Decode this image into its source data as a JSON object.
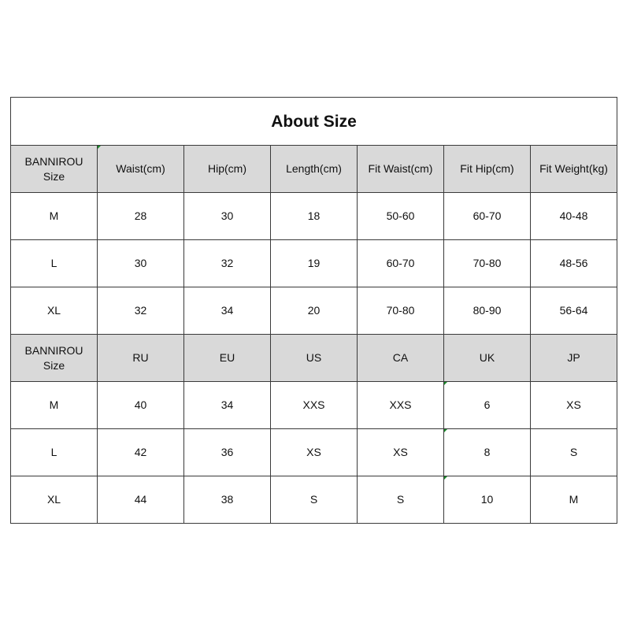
{
  "title": "About Size",
  "tables": [
    {
      "headers": [
        "BANNIROU\nSize",
        "Waist(cm)",
        "Hip(cm)",
        "Length(cm)",
        "Fit Waist(cm)",
        "Fit Hip(cm)",
        "Fit Weight(kg)"
      ],
      "rows": [
        [
          "M",
          "28",
          "30",
          "18",
          "50-60",
          "60-70",
          "40-48"
        ],
        [
          "L",
          "30",
          "32",
          "19",
          "60-70",
          "70-80",
          "48-56"
        ],
        [
          "XL",
          "32",
          "34",
          "20",
          "70-80",
          "80-90",
          "56-64"
        ]
      ]
    },
    {
      "headers": [
        "BANNIROU\nSize",
        "RU",
        "EU",
        "US",
        "CA",
        "UK",
        "JP"
      ],
      "rows": [
        [
          "M",
          "40",
          "34",
          "XXS",
          "XXS",
          "6",
          "XS"
        ],
        [
          "L",
          "42",
          "36",
          "XS",
          "XS",
          "8",
          "S"
        ],
        [
          "XL",
          "44",
          "38",
          "S",
          "S",
          "10",
          "M"
        ]
      ]
    }
  ],
  "colors": {
    "header_bg": "#d9d9d9",
    "border": "#3a3a3a"
  }
}
